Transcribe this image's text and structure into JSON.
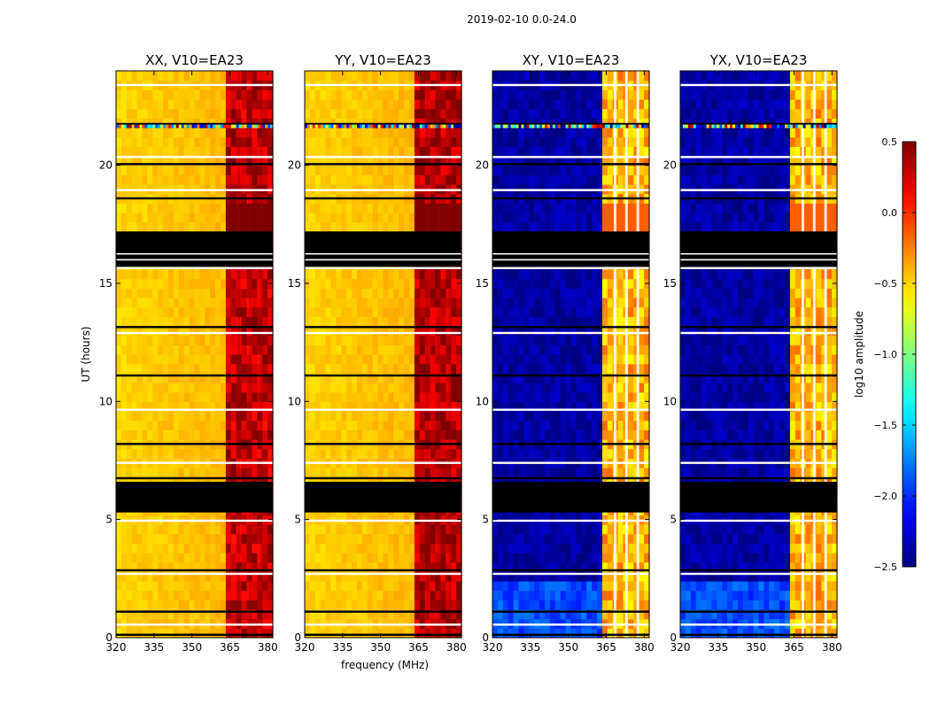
{
  "figure_title": "2019-02-10 0.0-24.0",
  "chart_data": {
    "type": "heatmap",
    "title": "2019-02-10 0.0-24.0",
    "shared_ylabel": "UT (hours)",
    "shared_xlabel": "frequency (MHz)",
    "xlim": [
      320,
      382
    ],
    "ylim": [
      0,
      24
    ],
    "xticks": [
      320,
      335,
      350,
      365,
      380
    ],
    "yticks": [
      0,
      5,
      10,
      15,
      20
    ],
    "colorbar": {
      "label": "log10 amplitude",
      "range": [
        -2.5,
        0.5
      ],
      "ticks": [
        "0.5",
        "0.0",
        "−0.5",
        "−1.0",
        "−1.5",
        "−2.0",
        "−2.5"
      ],
      "colormap": "jet"
    },
    "flagged_hours": [
      [
        5.3,
        6.6
      ],
      [
        15.7,
        17.2
      ]
    ],
    "high_band_mhz": [
      363.5,
      381
    ],
    "panels": [
      {
        "title": "XX, V10=EA23",
        "mode": "auto",
        "base_level": -0.5,
        "band_level": 0.3,
        "show_ylabel": true,
        "show_xlabel": false
      },
      {
        "title": "YY, V10=EA23",
        "mode": "auto",
        "base_level": -0.5,
        "band_level": 0.35,
        "show_ylabel": false,
        "show_xlabel": true
      },
      {
        "title": "XY, V10=EA23",
        "mode": "cross",
        "base_level": -2.4,
        "band_level": -0.4,
        "show_ylabel": false,
        "show_xlabel": false
      },
      {
        "title": "YX, V10=EA23",
        "mode": "cross",
        "base_level": -2.4,
        "band_level": -0.4,
        "show_ylabel": false,
        "show_xlabel": false
      }
    ]
  }
}
